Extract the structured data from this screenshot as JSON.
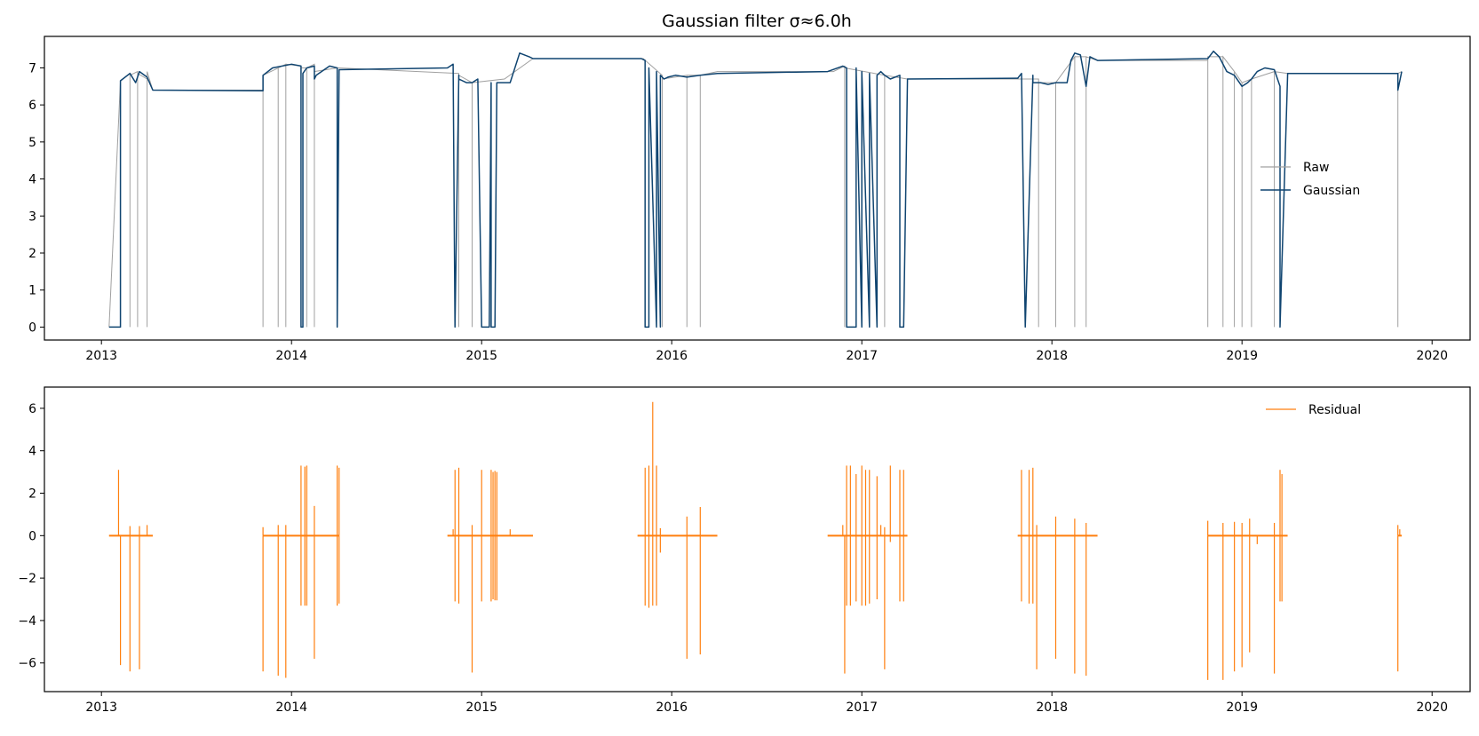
{
  "figure": {
    "title": "Gaussian filter σ≈6.0h"
  },
  "colors": {
    "raw": "#a0a0a0",
    "gaussian": "#0f4470",
    "residual": "#ff7f0e",
    "axes": "#000000"
  },
  "chart_data": [
    {
      "type": "line",
      "panel": "top",
      "title": "Gaussian filter σ≈6.0h",
      "xlabel": "",
      "ylabel": "",
      "x_is_date_year": true,
      "xlim": [
        2012.7,
        2020.2
      ],
      "ylim": [
        -0.35,
        7.85
      ],
      "xticks": [
        2013,
        2014,
        2015,
        2016,
        2017,
        2018,
        2019,
        2020
      ],
      "xtick_labels": [
        "2013",
        "2014",
        "2015",
        "2016",
        "2017",
        "2018",
        "2019",
        "2020"
      ],
      "yticks": [
        0,
        1,
        2,
        3,
        4,
        5,
        6,
        7
      ],
      "ytick_labels": [
        "0",
        "1",
        "2",
        "3",
        "4",
        "5",
        "6",
        "7"
      ],
      "grid": false,
      "legend": {
        "placement": "center-right",
        "entries": [
          "Raw",
          "Gaussian"
        ]
      },
      "series": [
        {
          "name": "Raw",
          "role": "raw",
          "x": [
            2013.04,
            2013.1,
            2013.15,
            2013.15,
            2013.15,
            2013.19,
            2013.19,
            2013.19,
            2013.24,
            2013.24,
            2013.24,
            2013.27,
            2013.85,
            2013.85,
            2013.85,
            2013.93,
            2013.93,
            2013.93,
            2013.97,
            2013.97,
            2013.97,
            2014.05,
            2014.05,
            2014.05,
            2014.08,
            2014.08,
            2014.08,
            2014.12,
            2014.12,
            2014.12,
            2014.24,
            2014.25,
            2014.88,
            2014.88,
            2014.88,
            2014.95,
            2014.95,
            2014.95,
            2015.12,
            2015.27,
            2015.85,
            2015.95,
            2015.95,
            2015.95,
            2016.08,
            2016.08,
            2016.08,
            2016.15,
            2016.15,
            2016.15,
            2016.24,
            2016.85,
            2016.91,
            2016.91,
            2016.91,
            2017.12,
            2017.12,
            2017.12,
            2017.24,
            2017.82,
            2017.93,
            2017.93,
            2017.93,
            2018.02,
            2018.02,
            2018.02,
            2018.12,
            2018.12,
            2018.12,
            2018.18,
            2018.18,
            2018.18,
            2018.24,
            2018.82,
            2018.82,
            2018.82,
            2018.9,
            2018.9,
            2018.9,
            2018.96,
            2018.96,
            2018.96,
            2019.0,
            2019.0,
            2019.0,
            2019.05,
            2019.05,
            2019.05,
            2019.17,
            2019.17,
            2019.17,
            2019.24,
            2019.82,
            2019.82,
            2019.82,
            2019.84
          ],
          "y": [
            0,
            6.65,
            6.85,
            0,
            6.8,
            6.9,
            0,
            6.85,
            6.7,
            0,
            6.9,
            6.4,
            6.4,
            0,
            6.8,
            7.0,
            0,
            7.0,
            7.1,
            0,
            7.1,
            7.05,
            0,
            7.0,
            7.0,
            0,
            7.0,
            7.1,
            0,
            6.9,
            7.0,
            7.0,
            6.85,
            0,
            6.8,
            6.6,
            0,
            6.6,
            6.7,
            7.25,
            7.25,
            6.8,
            0,
            6.7,
            6.8,
            0,
            6.8,
            6.8,
            0,
            6.8,
            6.9,
            6.9,
            7.05,
            0,
            7.0,
            6.8,
            0,
            6.8,
            6.7,
            6.7,
            6.7,
            0,
            6.6,
            6.6,
            0,
            6.6,
            7.3,
            0,
            7.3,
            7.3,
            0,
            7.3,
            7.2,
            7.2,
            0,
            7.3,
            7.3,
            0,
            7.3,
            6.9,
            0,
            6.9,
            6.6,
            0,
            6.6,
            6.7,
            0,
            6.7,
            6.9,
            0,
            6.9,
            6.85,
            6.85,
            0,
            6.85,
            6.9
          ]
        },
        {
          "name": "Gaussian",
          "role": "smooth",
          "x": [
            2013.04,
            2013.1,
            2013.1,
            2013.15,
            2013.18,
            2013.2,
            2013.24,
            2013.27,
            2013.85,
            2013.85,
            2013.9,
            2014.0,
            2014.05,
            2014.05,
            2014.05,
            2014.06,
            2014.06,
            2014.08,
            2014.12,
            2014.12,
            2014.13,
            2014.2,
            2014.24,
            2014.24,
            2014.25,
            2014.82,
            2014.85,
            2014.86,
            2014.86,
            2014.88,
            2014.88,
            2014.92,
            2014.95,
            2014.98,
            2015.0,
            2015.0,
            2015.04,
            2015.05,
            2015.05,
            2015.07,
            2015.08,
            2015.08,
            2015.1,
            2015.15,
            2015.2,
            2015.25,
            2015.27,
            2015.84,
            2015.86,
            2015.86,
            2015.88,
            2015.88,
            2015.92,
            2015.92,
            2015.94,
            2015.94,
            2015.96,
            2015.98,
            2016.02,
            2016.08,
            2016.15,
            2016.24,
            2016.82,
            2016.9,
            2016.92,
            2016.92,
            2016.97,
            2016.97,
            2017.0,
            2017.0,
            2017.04,
            2017.04,
            2017.08,
            2017.08,
            2017.1,
            2017.12,
            2017.15,
            2017.2,
            2017.2,
            2017.22,
            2017.24,
            2017.82,
            2017.84,
            2017.86,
            2017.86,
            2017.9,
            2017.9,
            2017.94,
            2017.98,
            2018.02,
            2018.08,
            2018.1,
            2018.12,
            2018.15,
            2018.18,
            2018.2,
            2018.22,
            2018.24,
            2018.82,
            2018.85,
            2018.88,
            2018.92,
            2018.96,
            2019.0,
            2019.03,
            2019.05,
            2019.08,
            2019.12,
            2019.17,
            2019.2,
            2019.2,
            2019.24,
            2019.82,
            2019.82,
            2019.84
          ],
          "y": [
            0,
            0,
            6.65,
            6.85,
            6.6,
            6.9,
            6.75,
            6.4,
            6.38,
            6.8,
            7.0,
            7.1,
            7.05,
            0,
            0,
            0,
            6.85,
            7.0,
            7.05,
            6.7,
            6.8,
            7.05,
            7.0,
            0,
            6.95,
            7.0,
            7.1,
            0,
            0,
            6.8,
            6.7,
            6.6,
            6.6,
            6.7,
            0,
            0,
            0,
            6.6,
            0,
            0,
            6.55,
            6.6,
            6.6,
            6.6,
            7.4,
            7.3,
            7.25,
            7.25,
            7.2,
            0,
            0,
            7.0,
            0,
            6.9,
            0,
            6.8,
            6.7,
            6.75,
            6.8,
            6.75,
            6.8,
            6.85,
            6.9,
            7.05,
            7.0,
            0,
            0,
            7.0,
            0,
            6.9,
            0,
            6.85,
            0,
            6.8,
            6.9,
            6.8,
            6.7,
            6.8,
            0,
            0,
            6.7,
            6.72,
            6.85,
            0,
            0,
            6.8,
            6.6,
            6.6,
            6.55,
            6.6,
            6.6,
            7.2,
            7.4,
            7.35,
            6.5,
            7.3,
            7.25,
            7.2,
            7.25,
            7.45,
            7.3,
            6.9,
            6.8,
            6.5,
            6.6,
            6.7,
            6.9,
            7.0,
            6.95,
            6.5,
            0,
            6.85,
            6.85,
            6.4,
            6.9
          ]
        }
      ]
    },
    {
      "type": "line",
      "panel": "bottom",
      "title": "",
      "xlabel": "",
      "ylabel": "",
      "x_is_date_year": true,
      "xlim": [
        2012.7,
        2020.2
      ],
      "ylim": [
        -7.35,
        7.0
      ],
      "xticks": [
        2013,
        2014,
        2015,
        2016,
        2017,
        2018,
        2019,
        2020
      ],
      "xtick_labels": [
        "2013",
        "2014",
        "2015",
        "2016",
        "2017",
        "2018",
        "2019",
        "2020"
      ],
      "yticks": [
        -6,
        -4,
        -2,
        0,
        2,
        4,
        6
      ],
      "ytick_labels": [
        "−6",
        "−4",
        "−2",
        "0",
        "2",
        "4",
        "6"
      ],
      "grid": false,
      "legend": {
        "placement": "top-right",
        "entries": [
          "Residual"
        ]
      },
      "series": [
        {
          "name": "Residual",
          "role": "residual",
          "spikes": [
            [
              2013.09,
              3.1
            ],
            [
              2013.1,
              -6.1
            ],
            [
              2013.15,
              0.45
            ],
            [
              2013.15,
              -6.4
            ],
            [
              2013.2,
              0.45
            ],
            [
              2013.2,
              -6.3
            ],
            [
              2013.24,
              0.5
            ],
            [
              2013.85,
              0.4
            ],
            [
              2013.85,
              -6.4
            ],
            [
              2013.93,
              0.5
            ],
            [
              2013.93,
              -6.6
            ],
            [
              2013.97,
              0.5
            ],
            [
              2013.97,
              -6.7
            ],
            [
              2014.05,
              3.3
            ],
            [
              2014.05,
              -3.3
            ],
            [
              2014.07,
              3.25
            ],
            [
              2014.07,
              -3.3
            ],
            [
              2014.08,
              3.3
            ],
            [
              2014.08,
              -3.3
            ],
            [
              2014.12,
              1.4
            ],
            [
              2014.12,
              -5.8
            ],
            [
              2014.24,
              3.3
            ],
            [
              2014.24,
              -3.3
            ],
            [
              2014.25,
              3.2
            ],
            [
              2014.25,
              -3.2
            ],
            [
              2014.85,
              0.3
            ],
            [
              2014.86,
              3.1
            ],
            [
              2014.86,
              -3.1
            ],
            [
              2014.88,
              3.2
            ],
            [
              2014.88,
              -3.2
            ],
            [
              2014.95,
              0.5
            ],
            [
              2014.95,
              -6.45
            ],
            [
              2015.0,
              3.1
            ],
            [
              2015.0,
              -3.1
            ],
            [
              2015.05,
              3.1
            ],
            [
              2015.05,
              -3.1
            ],
            [
              2015.06,
              3.0
            ],
            [
              2015.06,
              -3.0
            ],
            [
              2015.07,
              3.05
            ],
            [
              2015.07,
              -3.05
            ],
            [
              2015.08,
              3.0
            ],
            [
              2015.08,
              -3.05
            ],
            [
              2015.15,
              0.3
            ],
            [
              2015.86,
              3.2
            ],
            [
              2015.86,
              -3.3
            ],
            [
              2015.88,
              3.3
            ],
            [
              2015.88,
              -3.4
            ],
            [
              2015.9,
              6.3
            ],
            [
              2015.9,
              -3.3
            ],
            [
              2015.92,
              3.3
            ],
            [
              2015.92,
              -3.3
            ],
            [
              2015.94,
              0.35
            ],
            [
              2015.94,
              -0.8
            ],
            [
              2016.08,
              0.9
            ],
            [
              2016.08,
              -5.8
            ],
            [
              2016.15,
              1.35
            ],
            [
              2016.15,
              -5.6
            ],
            [
              2016.9,
              0.5
            ],
            [
              2016.91,
              -6.5
            ],
            [
              2016.92,
              3.3
            ],
            [
              2016.92,
              -3.3
            ],
            [
              2016.94,
              3.3
            ],
            [
              2016.94,
              -3.3
            ],
            [
              2016.97,
              2.9
            ],
            [
              2016.97,
              -3.1
            ],
            [
              2017.0,
              3.3
            ],
            [
              2017.0,
              -3.3
            ],
            [
              2017.02,
              3.1
            ],
            [
              2017.02,
              -3.3
            ],
            [
              2017.04,
              3.1
            ],
            [
              2017.04,
              -3.2
            ],
            [
              2017.08,
              2.8
            ],
            [
              2017.08,
              -3.0
            ],
            [
              2017.1,
              0.5
            ],
            [
              2017.12,
              0.4
            ],
            [
              2017.12,
              -6.3
            ],
            [
              2017.15,
              3.3
            ],
            [
              2017.15,
              -0.3
            ],
            [
              2017.2,
              3.1
            ],
            [
              2017.2,
              -3.1
            ],
            [
              2017.22,
              3.1
            ],
            [
              2017.22,
              -3.1
            ],
            [
              2017.84,
              3.1
            ],
            [
              2017.84,
              -3.1
            ],
            [
              2017.88,
              3.1
            ],
            [
              2017.88,
              -3.2
            ],
            [
              2017.9,
              3.2
            ],
            [
              2017.9,
              -3.2
            ],
            [
              2017.92,
              0.5
            ],
            [
              2017.92,
              -6.3
            ],
            [
              2018.02,
              0.9
            ],
            [
              2018.02,
              -5.8
            ],
            [
              2018.12,
              0.8
            ],
            [
              2018.12,
              -6.5
            ],
            [
              2018.18,
              0.6
            ],
            [
              2018.18,
              -6.6
            ],
            [
              2018.82,
              0.7
            ],
            [
              2018.82,
              -6.8
            ],
            [
              2018.9,
              0.6
            ],
            [
              2018.9,
              -6.8
            ],
            [
              2018.96,
              0.65
            ],
            [
              2018.96,
              -6.4
            ],
            [
              2019.0,
              0.6
            ],
            [
              2019.0,
              -6.2
            ],
            [
              2019.04,
              0.8
            ],
            [
              2019.04,
              -5.5
            ],
            [
              2019.08,
              -0.4
            ],
            [
              2019.17,
              0.6
            ],
            [
              2019.17,
              -6.5
            ],
            [
              2019.2,
              3.1
            ],
            [
              2019.2,
              -3.1
            ],
            [
              2019.21,
              2.9
            ],
            [
              2019.21,
              -3.1
            ],
            [
              2019.82,
              0.5
            ],
            [
              2019.82,
              -6.4
            ],
            [
              2019.83,
              0.3
            ]
          ],
          "active_spans": [
            [
              2013.04,
              2013.27
            ],
            [
              2013.85,
              2014.25
            ],
            [
              2014.82,
              2015.27
            ],
            [
              2015.82,
              2016.24
            ],
            [
              2016.82,
              2017.24
            ],
            [
              2017.82,
              2018.24
            ],
            [
              2018.82,
              2019.24
            ],
            [
              2019.82,
              2019.84
            ]
          ]
        }
      ]
    }
  ]
}
